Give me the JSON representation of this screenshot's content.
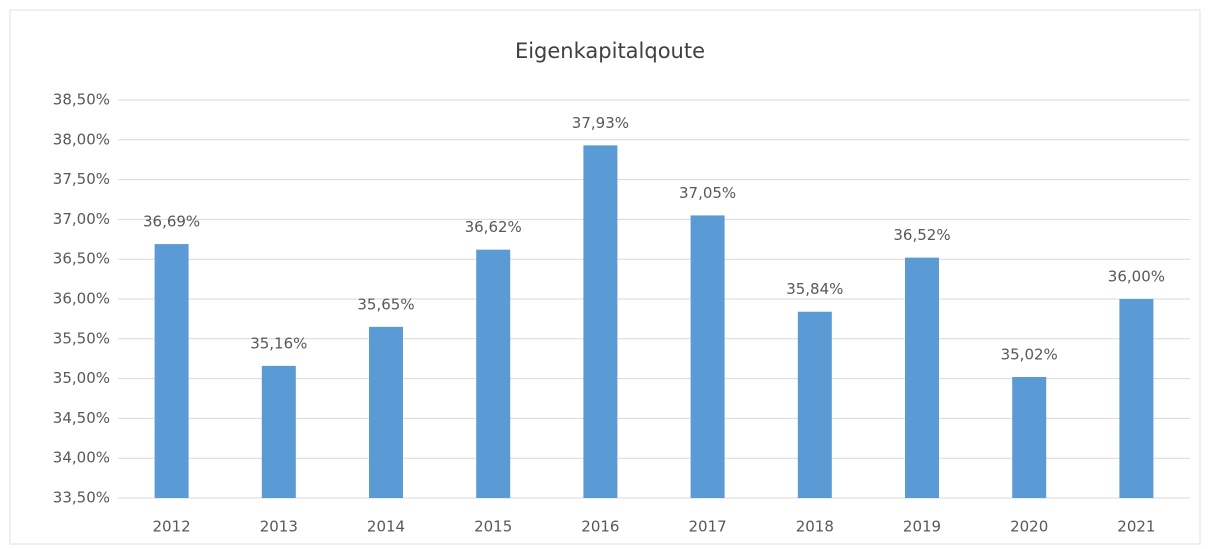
{
  "chart_data": {
    "type": "bar",
    "title": "Eigenkapitalqoute",
    "categories": [
      "2012",
      "2013",
      "2014",
      "2015",
      "2016",
      "2017",
      "2018",
      "2019",
      "2020",
      "2021"
    ],
    "values": [
      36.69,
      35.16,
      35.65,
      36.62,
      37.93,
      37.05,
      35.84,
      36.52,
      35.02,
      36.0
    ],
    "value_labels": [
      "36,69%",
      "35,16%",
      "35,65%",
      "36,62%",
      "37,93%",
      "37,05%",
      "35,84%",
      "36,52%",
      "35,02%",
      "36,00%"
    ],
    "color": "#5b9bd5",
    "ylim": [
      33.5,
      38.5
    ],
    "yticks": [
      {
        "value": 33.5,
        "label": "33,50%"
      },
      {
        "value": 34.0,
        "label": "34,00%"
      },
      {
        "value": 34.5,
        "label": "34,50%"
      },
      {
        "value": 35.0,
        "label": "35,00%"
      },
      {
        "value": 35.5,
        "label": "35,50%"
      },
      {
        "value": 36.0,
        "label": "36,00%"
      },
      {
        "value": 36.5,
        "label": "36,50%"
      },
      {
        "value": 37.0,
        "label": "37,00%"
      },
      {
        "value": 37.5,
        "label": "37,50%"
      },
      {
        "value": 38.0,
        "label": "38,00%"
      },
      {
        "value": 38.5,
        "label": "38,50%"
      }
    ],
    "grid": true
  }
}
